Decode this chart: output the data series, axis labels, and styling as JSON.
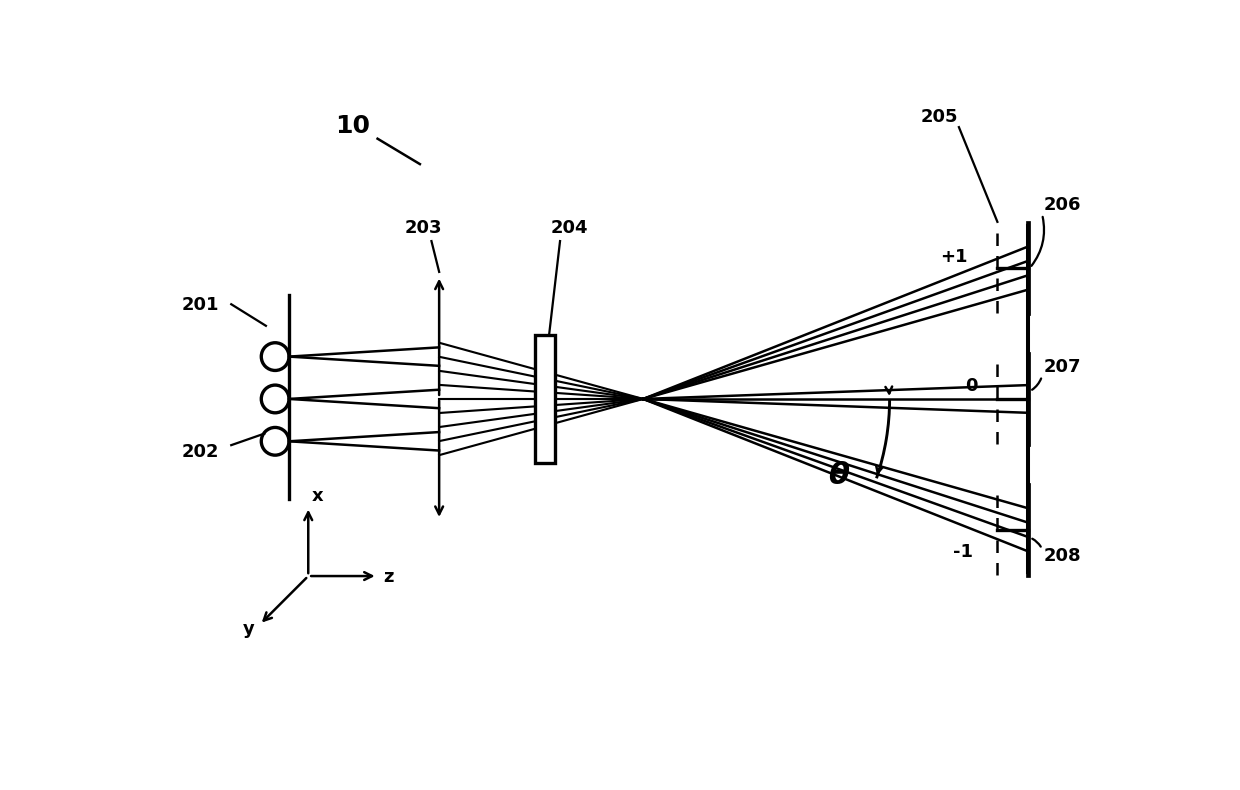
{
  "bg_color": "#ffffff",
  "line_color": "#000000",
  "fig_width": 12.4,
  "fig_height": 7.9,
  "label_10": "10",
  "label_201": "201",
  "label_202": "202",
  "label_203": "203",
  "label_204": "204",
  "label_205": "205",
  "label_206": "206",
  "label_207": "207",
  "label_208": "208",
  "label_plus1": "+1",
  "label_zero": "0",
  "label_minus1": "-1",
  "label_theta": "θ",
  "label_x": "x",
  "label_y": "y",
  "label_z": "z",
  "lw": 1.8,
  "lw_thick": 2.4,
  "fs": 13,
  "fs_big": 16,
  "fs_theta": 22
}
